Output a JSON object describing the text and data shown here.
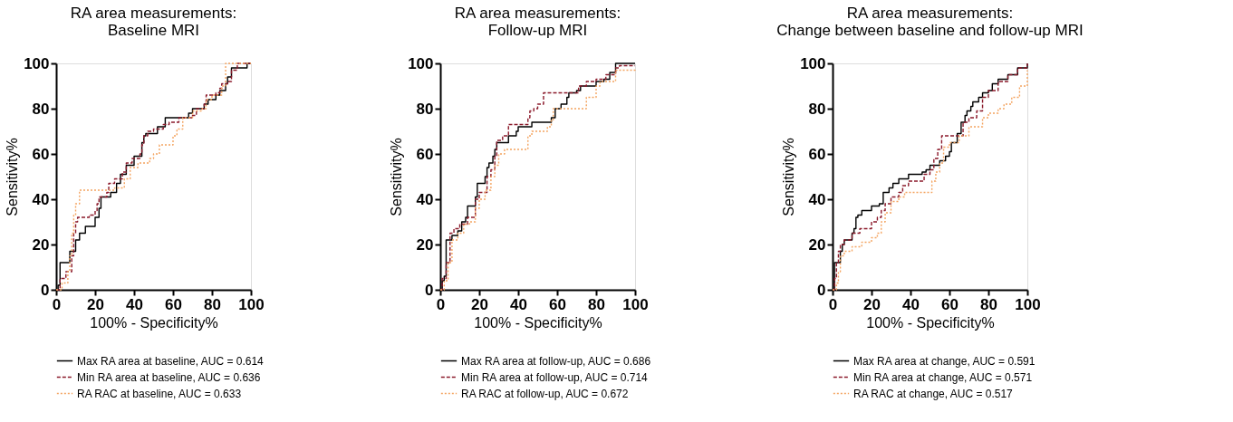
{
  "chart_data": [
    {
      "type": "step",
      "title": "RA area measurements:\nBaseline MRI",
      "xlabel": "100% - Specificity%",
      "ylabel": "Sensitivity%",
      "xlim": [
        0,
        100
      ],
      "ylim": [
        0,
        100
      ],
      "xticks": [
        0,
        20,
        40,
        60,
        80,
        100
      ],
      "yticks": [
        0,
        20,
        40,
        60,
        80,
        100
      ],
      "grid": false,
      "legend": "bottom",
      "marker": "none",
      "series": [
        {
          "name": "Max RA area at baseline, AUC = 0.614",
          "color": "#000000",
          "line_style": "solid",
          "x": [
            0,
            1,
            2,
            7,
            10,
            12,
            15,
            20,
            22,
            23,
            28,
            31,
            33,
            36,
            40,
            44,
            45,
            46,
            52,
            56,
            68,
            70,
            72,
            76,
            78,
            82,
            84,
            87,
            88,
            90,
            98,
            100
          ],
          "values": [
            0,
            2,
            12,
            17,
            22,
            25,
            28,
            32,
            36,
            41,
            43,
            47,
            51,
            55,
            59,
            65,
            68,
            69,
            72,
            76,
            78,
            80,
            80,
            82,
            84,
            86,
            88,
            91,
            94,
            98,
            100,
            100
          ]
        },
        {
          "name": "Min RA area at baseline, AUC = 0.636",
          "color": "#8b1a2b",
          "line_style": "dashed",
          "x": [
            0,
            2,
            5,
            8,
            9,
            10,
            11,
            15,
            17,
            20,
            21,
            22,
            26,
            27,
            30,
            34,
            36,
            39,
            43,
            44,
            45,
            47,
            50,
            55,
            58,
            63,
            70,
            72,
            76,
            77,
            82,
            84,
            85,
            88,
            90,
            93,
            100
          ],
          "values": [
            0,
            5,
            8,
            15,
            25,
            30,
            32,
            32,
            33,
            35,
            38,
            41,
            43,
            47,
            49,
            52,
            56,
            58,
            60,
            64,
            68,
            70,
            71,
            73,
            74,
            76,
            77,
            80,
            82,
            86,
            87,
            89,
            91,
            92,
            97,
            100,
            100
          ]
        },
        {
          "name": "RA RAC at baseline, AUC = 0.633",
          "color": "#f4a460",
          "line_style": "dotted",
          "x": [
            0,
            3,
            6,
            7,
            8,
            9,
            10,
            12,
            26,
            30,
            35,
            38,
            42,
            48,
            50,
            53,
            60,
            62,
            65,
            70,
            75,
            77,
            80,
            85,
            87,
            100
          ],
          "values": [
            0,
            3,
            8,
            15,
            25,
            33,
            38,
            44,
            44,
            45,
            49,
            54,
            56,
            58,
            60,
            64,
            68,
            71,
            76,
            79,
            80,
            84,
            86,
            90,
            100,
            100
          ]
        }
      ]
    },
    {
      "type": "step",
      "title": "RA area measurements:\nFollow-up MRI",
      "xlabel": "100% - Specificity%",
      "ylabel": "Sensitivity%",
      "xlim": [
        0,
        100
      ],
      "ylim": [
        0,
        100
      ],
      "xticks": [
        0,
        20,
        40,
        60,
        80,
        100
      ],
      "yticks": [
        0,
        20,
        40,
        60,
        80,
        100
      ],
      "grid": false,
      "legend": "bottom",
      "marker": "none",
      "series": [
        {
          "name": "Max RA area at follow-up, AUC = 0.686",
          "color": "#000000",
          "line_style": "solid",
          "x": [
            0,
            1,
            2,
            3,
            6,
            9,
            11,
            13,
            14,
            18,
            19,
            23,
            24,
            25,
            27,
            28,
            29,
            35,
            39,
            40,
            47,
            57,
            59,
            62,
            65,
            66,
            70,
            72,
            80,
            84,
            87,
            90,
            100
          ],
          "values": [
            0,
            4,
            6,
            22,
            24,
            26,
            30,
            32,
            37,
            41,
            47,
            50,
            54,
            56,
            59,
            62,
            65,
            68,
            70,
            72,
            74,
            76,
            80,
            82,
            85,
            87,
            88,
            90,
            92,
            93,
            96,
            100,
            100
          ]
        },
        {
          "name": "Min RA area at follow-up, AUC = 0.714",
          "color": "#8b1a2b",
          "line_style": "dashed",
          "x": [
            0,
            1,
            3,
            5,
            7,
            10,
            14,
            18,
            20,
            24,
            26,
            28,
            29,
            32,
            35,
            45,
            46,
            48,
            50,
            53,
            71,
            75,
            80,
            85,
            90,
            92,
            100
          ],
          "values": [
            0,
            5,
            12,
            25,
            27,
            29,
            32,
            40,
            43,
            50,
            53,
            59,
            66,
            68,
            73,
            76,
            79,
            80,
            82,
            87,
            90,
            92,
            93,
            95,
            98,
            99,
            99
          ]
        },
        {
          "name": "RA RAC at follow-up, AUC = 0.672",
          "color": "#f4a460",
          "line_style": "dotted",
          "x": [
            0,
            2,
            4,
            6,
            9,
            12,
            15,
            18,
            20,
            23,
            26,
            28,
            30,
            33,
            45,
            47,
            55,
            57,
            58,
            75,
            80,
            82,
            90,
            100
          ],
          "values": [
            0,
            4,
            12,
            22,
            25,
            29,
            30,
            36,
            40,
            44,
            50,
            55,
            60,
            62,
            68,
            70,
            72,
            75,
            80,
            85,
            90,
            92,
            97,
            98
          ]
        }
      ]
    },
    {
      "type": "step",
      "title": "RA area measurements:\nChange between baseline and follow-up MRI",
      "xlabel": "100% - Specificity%",
      "ylabel": "Sensitivity%",
      "xlim": [
        0,
        100
      ],
      "ylim": [
        0,
        100
      ],
      "xticks": [
        0,
        20,
        40,
        60,
        80,
        100
      ],
      "yticks": [
        0,
        20,
        40,
        60,
        80,
        100
      ],
      "grid": false,
      "legend": "bottom",
      "marker": "none",
      "series": [
        {
          "name": "Max RA area at change, AUC = 0.591",
          "color": "#000000",
          "line_style": "solid",
          "x": [
            0,
            1,
            3,
            4,
            5,
            6,
            10,
            11,
            12,
            13,
            15,
            20,
            24,
            26,
            29,
            31,
            34,
            39,
            46,
            48,
            50,
            55,
            58,
            60,
            61,
            64,
            66,
            68,
            69,
            71,
            72,
            75,
            77,
            80,
            82,
            85,
            90,
            95,
            100
          ],
          "values": [
            0,
            12,
            12,
            17,
            20,
            22,
            25,
            27,
            32,
            33,
            35,
            37,
            38,
            43,
            45,
            47,
            49,
            51,
            52,
            53,
            55,
            57,
            59,
            61,
            65,
            69,
            74,
            77,
            79,
            81,
            83,
            85,
            87,
            88,
            91,
            93,
            95,
            98,
            100
          ]
        },
        {
          "name": "Min RA area at change, AUC = 0.571",
          "color": "#8b1a2b",
          "line_style": "dashed",
          "x": [
            0,
            1,
            2,
            3,
            4,
            6,
            10,
            14,
            20,
            23,
            25,
            27,
            30,
            34,
            36,
            39,
            47,
            50,
            52,
            54,
            56,
            67,
            70,
            74,
            77,
            80,
            85,
            90,
            95,
            100
          ],
          "values": [
            0,
            5,
            12,
            17,
            20,
            22,
            25,
            27,
            30,
            32,
            35,
            38,
            41,
            43,
            46,
            48,
            51,
            53,
            58,
            62,
            68,
            74,
            76,
            79,
            85,
            88,
            92,
            95,
            98,
            100
          ]
        },
        {
          "name": "RA RAC at change, AUC = 0.517",
          "color": "#f4a460",
          "line_style": "dotted",
          "x": [
            0,
            2,
            3,
            4,
            6,
            10,
            15,
            20,
            23,
            25,
            27,
            30,
            34,
            37,
            51,
            53,
            55,
            57,
            60,
            65,
            70,
            77,
            80,
            85,
            88,
            92,
            96,
            100
          ],
          "values": [
            0,
            3,
            8,
            15,
            17,
            19,
            21,
            23,
            25,
            30,
            34,
            39,
            41,
            43,
            48,
            52,
            56,
            63,
            65,
            68,
            72,
            76,
            78,
            80,
            82,
            85,
            90,
            97
          ]
        }
      ]
    }
  ]
}
